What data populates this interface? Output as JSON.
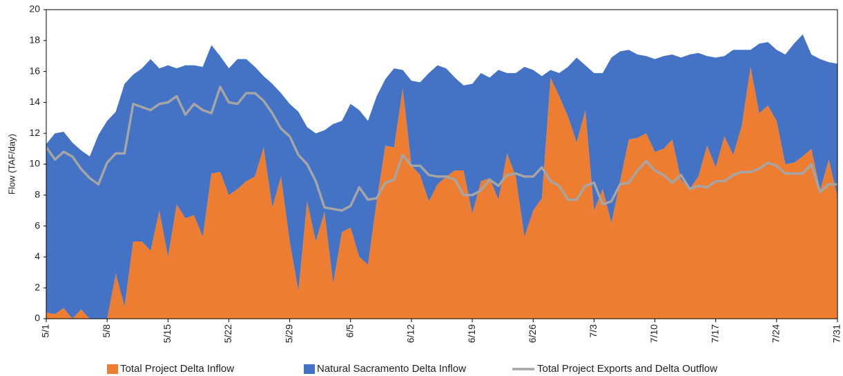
{
  "chart_data": {
    "type": "area",
    "stacked": true,
    "y_label": "Flow (TAF/day)",
    "categories": [
      "5/1",
      null,
      null,
      null,
      null,
      null,
      null,
      "5/8",
      null,
      null,
      null,
      null,
      null,
      null,
      "5/15",
      null,
      null,
      null,
      null,
      null,
      null,
      "5/22",
      null,
      null,
      null,
      null,
      null,
      null,
      "5/29",
      null,
      null,
      null,
      null,
      null,
      null,
      "6/5",
      null,
      null,
      null,
      null,
      null,
      null,
      "6/12",
      null,
      null,
      null,
      null,
      null,
      null,
      "6/19",
      null,
      null,
      null,
      null,
      null,
      null,
      "6/26",
      null,
      null,
      null,
      null,
      null,
      null,
      "7/3",
      null,
      null,
      null,
      null,
      null,
      null,
      "7/10",
      null,
      null,
      null,
      null,
      null,
      null,
      "7/17",
      null,
      null,
      null,
      null,
      null,
      null,
      "7/24",
      null,
      null,
      null,
      null,
      null,
      null,
      "7/31"
    ],
    "ylim": [
      0,
      20
    ],
    "yticks": [
      0,
      2,
      4,
      6,
      8,
      10,
      12,
      14,
      16,
      18,
      20
    ],
    "series": [
      {
        "name": "Total Project Delta Inflow",
        "type": "area",
        "color": "#ED7D31",
        "values": [
          0.4,
          0.3,
          0.7,
          0,
          0.6,
          0,
          0,
          0,
          2.9,
          0.8,
          5.0,
          5.0,
          4.4,
          7.0,
          4.0,
          7.4,
          6.5,
          6.7,
          5.3,
          9.4,
          9.5,
          8.0,
          8.4,
          8.9,
          9.2,
          11.1,
          7.2,
          9.2,
          5.0,
          1.8,
          7.6,
          5.0,
          6.9,
          2.3,
          5.6,
          5.9,
          4.0,
          3.5,
          7.6,
          11.2,
          11.1,
          14.9,
          9.9,
          9.3,
          7.6,
          8.7,
          9.2,
          9.6,
          9.6,
          6.8,
          8.9,
          9.1,
          7.7,
          10.7,
          9.2,
          5.3,
          7.0,
          7.8,
          15.6,
          14.4,
          13.1,
          11.4,
          13.5,
          7.0,
          8.4,
          6.2,
          8.9,
          11.6,
          11.7,
          12.0,
          10.8,
          11.0,
          11.6,
          9.0,
          8.4,
          9.2,
          11.2,
          9.8,
          11.8,
          10.6,
          12.5,
          16.3,
          13.3,
          13.8,
          12.8,
          10.0,
          10.1,
          10.5,
          11.0,
          8.3,
          10.3,
          7.9
        ]
      },
      {
        "name": "Natural Sacramento Delta Inflow",
        "type": "area",
        "color": "#4472C4",
        "values": [
          10.9,
          11.7,
          11.4,
          11.4,
          10.3,
          10.5,
          11.9,
          12.8,
          10.5,
          14.4,
          10.8,
          11.2,
          12.4,
          9.2,
          12.4,
          8.8,
          9.9,
          9.7,
          11.0,
          8.3,
          7.5,
          8.2,
          8.4,
          7.9,
          7.1,
          4.6,
          8.0,
          5.4,
          8.9,
          11.6,
          4.8,
          7.0,
          5.3,
          10.3,
          7.2,
          8.0,
          9.5,
          9.3,
          6.8,
          4.3,
          5.1,
          1.2,
          5.5,
          6.0,
          8.3,
          7.7,
          7.0,
          6.0,
          5.5,
          8.4,
          7.0,
          6.5,
          8.4,
          5.2,
          6.7,
          11.0,
          9.1,
          7.9,
          0.5,
          1.5,
          3.2,
          5.5,
          2.9,
          8.9,
          7.5,
          10.7,
          8.4,
          5.8,
          5.4,
          5.0,
          6.0,
          6.0,
          5.5,
          7.9,
          8.7,
          8.0,
          5.8,
          7.1,
          5.2,
          6.8,
          4.9,
          1.1,
          4.5,
          4.1,
          4.6,
          7.1,
          7.7,
          7.9,
          6.1,
          8.5,
          6.3,
          8.6
        ]
      },
      {
        "name": "Total Project Exports and Delta Outflow",
        "type": "line",
        "color": "#A5A5A5",
        "values": [
          11.1,
          10.3,
          10.8,
          10.5,
          9.7,
          9.1,
          8.7,
          10.1,
          10.7,
          10.7,
          13.9,
          13.7,
          13.5,
          13.9,
          14.0,
          14.4,
          13.2,
          13.9,
          13.5,
          13.3,
          15.0,
          14.0,
          13.9,
          14.6,
          14.6,
          14.1,
          13.3,
          12.3,
          11.8,
          10.6,
          10.0,
          8.9,
          7.2,
          7.1,
          7.0,
          7.3,
          8.5,
          7.7,
          7.8,
          8.8,
          9.0,
          10.6,
          9.9,
          9.9,
          9.3,
          9.2,
          9.2,
          9.0,
          8.0,
          8.0,
          8.3,
          9.0,
          8.6,
          9.3,
          9.4,
          9.2,
          9.2,
          9.8,
          8.9,
          8.6,
          7.7,
          7.7,
          8.6,
          8.8,
          7.4,
          7.6,
          8.7,
          8.8,
          9.6,
          10.2,
          9.6,
          9.3,
          8.8,
          9.3,
          8.4,
          8.6,
          8.5,
          8.9,
          8.9,
          9.3,
          9.5,
          9.5,
          9.7,
          10.1,
          9.9,
          9.4,
          9.4,
          9.4,
          10.0,
          8.2,
          8.7,
          8.7
        ]
      }
    ]
  }
}
